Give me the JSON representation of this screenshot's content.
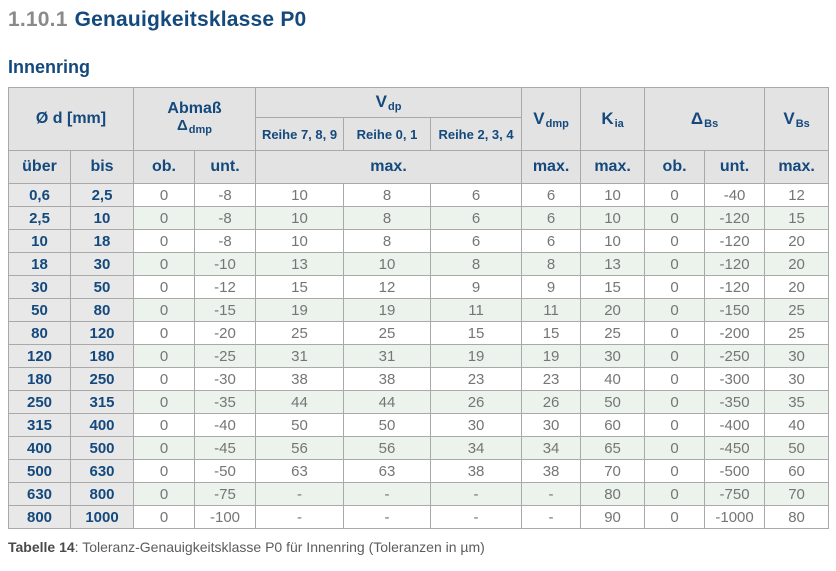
{
  "page": {
    "heading_number": "1.10.1",
    "heading_title": "Genauigkeitsklasse P0",
    "section_title": "Innenring",
    "caption_label": "Tabelle 14",
    "caption_rest": ": Toleranz-Genauigkeitsklasse P0 für Innenring (Toleranzen in µm)"
  },
  "colors": {
    "heading_blue": "#14497d",
    "heading_gray": "#8a8a8a",
    "header_bg": "#e3e3e3",
    "dim_col_bg": "#e8e8e8",
    "stripe_green": "#ecf3ec",
    "border_gray": "#a9a9a9",
    "data_text_gray": "#757575"
  },
  "table": {
    "headers": {
      "diameter": "Ø d  [mm]",
      "abmass_line1": "Abmaß",
      "abmass_base": "Δ",
      "abmass_sub": "dmp",
      "vdp_base": "V",
      "vdp_sub": "dp",
      "vdmp_base": "V",
      "vdmp_sub": "dmp",
      "kia_base": "K",
      "kia_sub": "ia",
      "dbs_base": "Δ",
      "dbs_sub": "Bs",
      "vbs_base": "V",
      "vbs_sub": "Bs",
      "reihe": [
        "Reihe 7, 8, 9",
        "Reihe 0, 1",
        "Reihe 2, 3, 4"
      ]
    },
    "subheaders": [
      "über",
      "bis",
      "ob.",
      "unt.",
      "max.",
      "max.",
      "max.",
      "ob.",
      "unt.",
      "max."
    ],
    "column_keys": [
      "ueber",
      "bis",
      "abmass-ob",
      "abmass-unt",
      "vdp-reihe789",
      "vdp-reihe01",
      "vdp-reihe234",
      "vdmp",
      "kia",
      "dbs-ob",
      "dbs-unt",
      "vbs"
    ],
    "rows": [
      [
        "0,6",
        "2,5",
        "0",
        "-8",
        "10",
        "8",
        "6",
        "6",
        "10",
        "0",
        "-40",
        "12"
      ],
      [
        "2,5",
        "10",
        "0",
        "-8",
        "10",
        "8",
        "6",
        "6",
        "10",
        "0",
        "-120",
        "15"
      ],
      [
        "10",
        "18",
        "0",
        "-8",
        "10",
        "8",
        "6",
        "6",
        "10",
        "0",
        "-120",
        "20"
      ],
      [
        "18",
        "30",
        "0",
        "-10",
        "13",
        "10",
        "8",
        "8",
        "13",
        "0",
        "-120",
        "20"
      ],
      [
        "30",
        "50",
        "0",
        "-12",
        "15",
        "12",
        "9",
        "9",
        "15",
        "0",
        "-120",
        "20"
      ],
      [
        "50",
        "80",
        "0",
        "-15",
        "19",
        "19",
        "11",
        "11",
        "20",
        "0",
        "-150",
        "25"
      ],
      [
        "80",
        "120",
        "0",
        "-20",
        "25",
        "25",
        "15",
        "15",
        "25",
        "0",
        "-200",
        "25"
      ],
      [
        "120",
        "180",
        "0",
        "-25",
        "31",
        "31",
        "19",
        "19",
        "30",
        "0",
        "-250",
        "30"
      ],
      [
        "180",
        "250",
        "0",
        "-30",
        "38",
        "38",
        "23",
        "23",
        "40",
        "0",
        "-300",
        "30"
      ],
      [
        "250",
        "315",
        "0",
        "-35",
        "44",
        "44",
        "26",
        "26",
        "50",
        "0",
        "-350",
        "35"
      ],
      [
        "315",
        "400",
        "0",
        "-40",
        "50",
        "50",
        "30",
        "30",
        "60",
        "0",
        "-400",
        "40"
      ],
      [
        "400",
        "500",
        "0",
        "-45",
        "56",
        "56",
        "34",
        "34",
        "65",
        "0",
        "-450",
        "50"
      ],
      [
        "500",
        "630",
        "0",
        "-50",
        "63",
        "63",
        "38",
        "38",
        "70",
        "0",
        "-500",
        "60"
      ],
      [
        "630",
        "800",
        "0",
        "-75",
        "-",
        "-",
        "-",
        "-",
        "80",
        "0",
        "-750",
        "70"
      ],
      [
        "800",
        "1000",
        "0",
        "-100",
        "-",
        "-",
        "-",
        "-",
        "90",
        "0",
        "-1000",
        "80"
      ]
    ]
  }
}
